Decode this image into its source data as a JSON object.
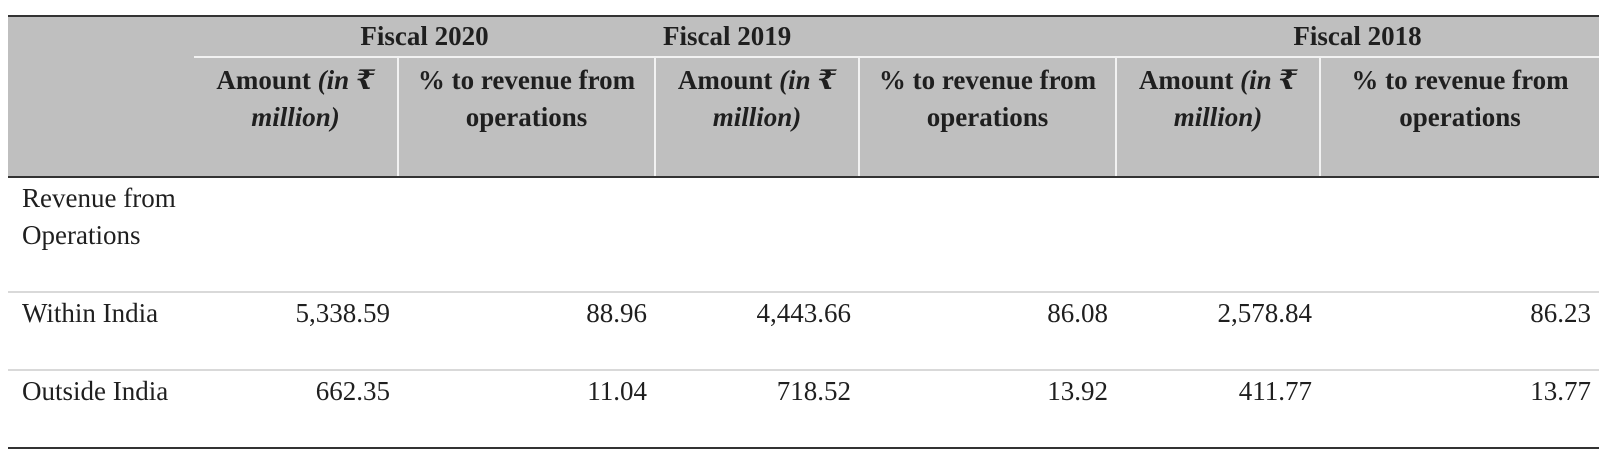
{
  "table": {
    "years": [
      "Fiscal 2020",
      "Fiscal 2019",
      "Fiscal 2018"
    ],
    "amount_header_prefix": "Amount ",
    "amount_header_unit": "(in ₹ million)",
    "pct_header": "% to revenue from operations",
    "group_label": "Revenue from Operations",
    "rows": [
      {
        "label": "Within India",
        "values": [
          "5,338.59",
          "88.96",
          "4,443.66",
          "86.08",
          "2,578.84",
          "86.23"
        ]
      },
      {
        "label": "Outside India",
        "values": [
          "662.35",
          "11.04",
          "718.52",
          "13.92",
          "411.77",
          "13.77"
        ]
      }
    ]
  }
}
